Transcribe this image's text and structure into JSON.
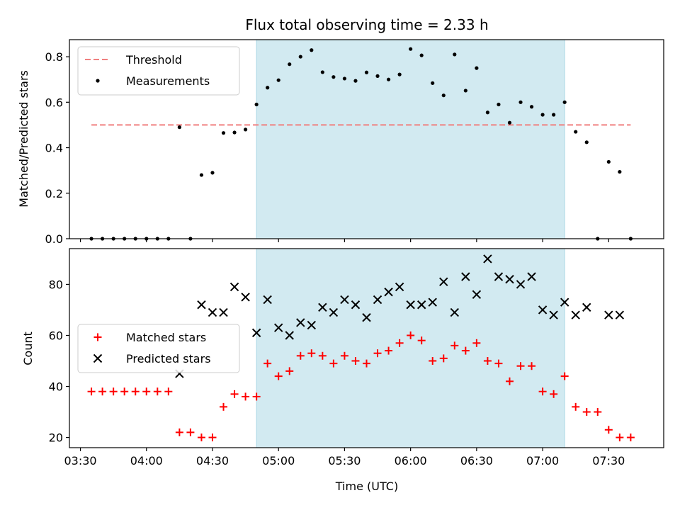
{
  "chart_data": [
    {
      "type": "scatter",
      "title": "Flux total observing time = 2.33 h",
      "ylabel": "Matched/Predicted stars",
      "xlabel": "",
      "ylim": [
        0,
        0.875
      ],
      "yticks": [
        0.0,
        0.2,
        0.4,
        0.6,
        0.8
      ],
      "grid": false,
      "legend": "top-left",
      "shaded_interval": [
        "04:50",
        "07:10"
      ],
      "shade_color": "#add8e6",
      "threshold": {
        "name": "Threshold",
        "value": 0.5,
        "x_start": "03:35",
        "x_end": "07:40",
        "color": "#f08080",
        "style": "dashed"
      },
      "series": [
        {
          "name": "Measurements",
          "marker": "dot",
          "color": "#000000",
          "x": [
            "03:35",
            "03:40",
            "03:45",
            "03:50",
            "03:55",
            "04:00",
            "04:05",
            "04:10",
            "04:15",
            "04:20",
            "04:25",
            "04:30",
            "04:35",
            "04:40",
            "04:45",
            "04:50",
            "04:55",
            "05:00",
            "05:05",
            "05:10",
            "05:15",
            "05:20",
            "05:25",
            "05:30",
            "05:35",
            "05:40",
            "05:45",
            "05:50",
            "05:55",
            "06:00",
            "06:05",
            "06:10",
            "06:15",
            "06:20",
            "06:25",
            "06:30",
            "06:35",
            "06:40",
            "06:45",
            "06:50",
            "06:55",
            "07:00",
            "07:05",
            "07:10",
            "07:15",
            "07:20",
            "07:25",
            "07:30",
            "07:35",
            "07:40"
          ],
          "y": [
            0.0,
            0.0,
            0.0,
            0.0,
            0.0,
            0.0,
            0.0,
            0.0,
            0.49,
            0.0,
            0.28,
            0.29,
            0.465,
            0.467,
            0.48,
            0.59,
            0.664,
            0.697,
            0.767,
            0.8,
            0.829,
            0.732,
            0.711,
            0.704,
            0.694,
            0.731,
            0.715,
            0.7,
            0.722,
            0.834,
            0.806,
            0.684,
            0.63,
            0.81,
            0.651,
            0.75,
            0.555,
            0.59,
            0.51,
            0.6,
            0.58,
            0.545,
            0.545,
            0.6,
            0.47,
            0.424,
            0.0,
            0.338,
            0.294,
            0.0
          ]
        }
      ]
    },
    {
      "type": "scatter",
      "title": "",
      "ylabel": "Count",
      "xlabel": "Time (UTC)",
      "ylim": [
        16,
        94
      ],
      "yticks": [
        20,
        40,
        60,
        80
      ],
      "xlim": [
        "03:25",
        "07:55"
      ],
      "xticks": [
        "03:30",
        "04:00",
        "04:30",
        "05:00",
        "05:30",
        "06:00",
        "06:30",
        "07:00",
        "07:30"
      ],
      "grid": false,
      "legend": "center-left",
      "shaded_interval": [
        "04:50",
        "07:10"
      ],
      "shade_color": "#add8e6",
      "series": [
        {
          "name": "Matched stars",
          "marker": "plus",
          "color": "#ff0000",
          "x": [
            "03:35",
            "03:40",
            "03:45",
            "03:50",
            "03:55",
            "04:00",
            "04:05",
            "04:10",
            "04:15",
            "04:20",
            "04:25",
            "04:30",
            "04:35",
            "04:40",
            "04:45",
            "04:50",
            "04:55",
            "05:00",
            "05:05",
            "05:10",
            "05:15",
            "05:20",
            "05:25",
            "05:30",
            "05:35",
            "05:40",
            "05:45",
            "05:50",
            "05:55",
            "06:00",
            "06:05",
            "06:10",
            "06:15",
            "06:20",
            "06:25",
            "06:30",
            "06:35",
            "06:40",
            "06:45",
            "06:50",
            "06:55",
            "07:00",
            "07:05",
            "07:10",
            "07:15",
            "07:20",
            "07:25",
            "07:30",
            "07:35",
            "07:40"
          ],
          "y": [
            38,
            38,
            38,
            38,
            38,
            38,
            38,
            38,
            22,
            22,
            20,
            20,
            32,
            37,
            36,
            36,
            49,
            44,
            46,
            52,
            53,
            52,
            49,
            52,
            50,
            49,
            53,
            54,
            57,
            60,
            58,
            50,
            51,
            56,
            54,
            57,
            50,
            49,
            42,
            48,
            48,
            38,
            37,
            44,
            32,
            30,
            30,
            23,
            20,
            20
          ]
        },
        {
          "name": "Predicted stars",
          "marker": "x",
          "color": "#000000",
          "x": [
            "04:15",
            "04:25",
            "04:30",
            "04:35",
            "04:40",
            "04:45",
            "04:50",
            "04:55",
            "05:00",
            "05:05",
            "05:10",
            "05:15",
            "05:20",
            "05:25",
            "05:30",
            "05:35",
            "05:40",
            "05:45",
            "05:50",
            "05:55",
            "06:00",
            "06:05",
            "06:10",
            "06:15",
            "06:20",
            "06:25",
            "06:30",
            "06:35",
            "06:40",
            "06:45",
            "06:50",
            "06:55",
            "07:00",
            "07:05",
            "07:10",
            "07:15",
            "07:20",
            "07:30",
            "07:35"
          ],
          "y": [
            45,
            72,
            69,
            69,
            79,
            75,
            61,
            74,
            63,
            60,
            65,
            64,
            71,
            69,
            74,
            72,
            67,
            74,
            77,
            79,
            72,
            72,
            73,
            81,
            69,
            83,
            76,
            90,
            83,
            82,
            80,
            83,
            70,
            68,
            73,
            68,
            71,
            68,
            68
          ]
        }
      ]
    }
  ]
}
